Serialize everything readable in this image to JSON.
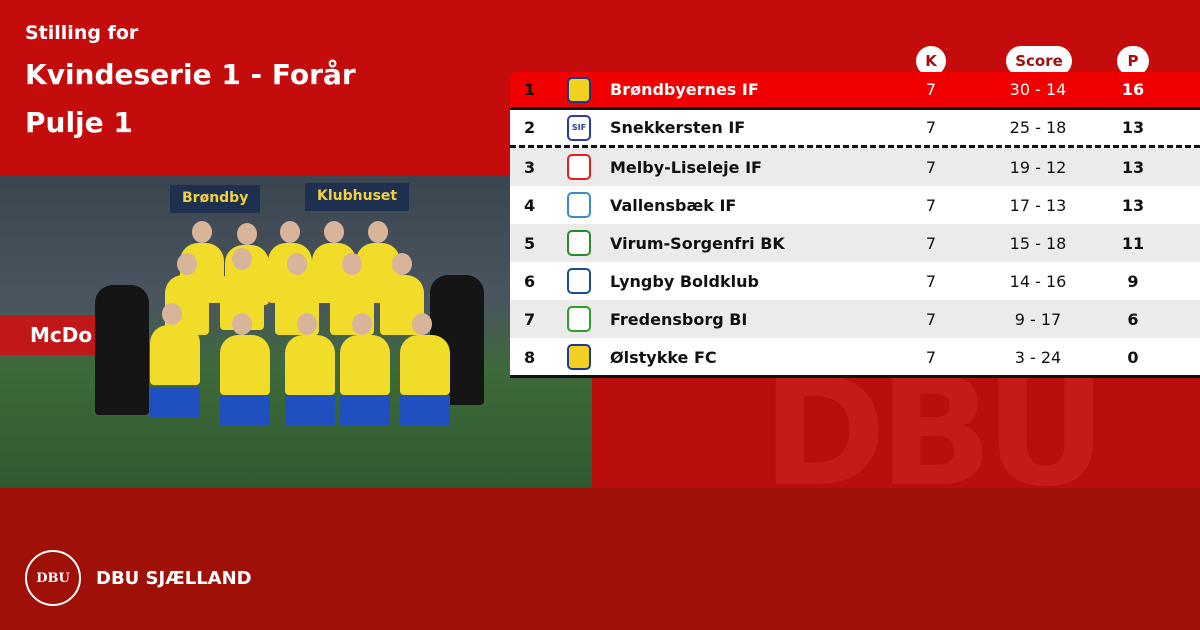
{
  "header": {
    "subtitle": "Stilling for",
    "title_line1": "Kvindeserie 1 - Forår",
    "title_line2": "Pulje 1"
  },
  "photo": {
    "signs": [
      "Brøndby",
      "Klubhuset",
      "McDo"
    ]
  },
  "table": {
    "columns": {
      "played": "K",
      "score": "Score",
      "points": "P"
    },
    "highlight_color": "#f00000",
    "rows": [
      {
        "rank": "1",
        "team": "Brøndbyernes IF",
        "played": "7",
        "score": "30 - 14",
        "points": "16",
        "logo": "brondby-crest-icon"
      },
      {
        "rank": "2",
        "team": "Snekkersten IF",
        "played": "7",
        "score": "25 - 18",
        "points": "13",
        "logo": "sif-crest-icon",
        "logo_text": "SIF"
      },
      {
        "rank": "3",
        "team": "Melby-Liseleje IF",
        "played": "7",
        "score": "19 - 12",
        "points": "13",
        "logo": "mli-crest-icon"
      },
      {
        "rank": "4",
        "team": "Vallensbæk IF",
        "played": "7",
        "score": "17 - 13",
        "points": "13",
        "logo": "vallensbaek-crest-icon"
      },
      {
        "rank": "5",
        "team": "Virum-Sorgenfri BK",
        "played": "7",
        "score": "15 - 18",
        "points": "11",
        "logo": "vsb-crest-icon"
      },
      {
        "rank": "6",
        "team": "Lyngby Boldklub",
        "played": "7",
        "score": "14 - 16",
        "points": "9",
        "logo": "lyngby-crest-icon"
      },
      {
        "rank": "7",
        "team": "Fredensborg BI",
        "played": "7",
        "score": "9 - 17",
        "points": "6",
        "logo": "fredensborg-crest-icon"
      },
      {
        "rank": "8",
        "team": "Ølstykke FC",
        "played": "7",
        "score": "3 - 24",
        "points": "0",
        "logo": "olstykke-crest-icon"
      }
    ]
  },
  "footer": {
    "logo_text": "DBU",
    "brand": "DBU SJÆLLAND"
  }
}
